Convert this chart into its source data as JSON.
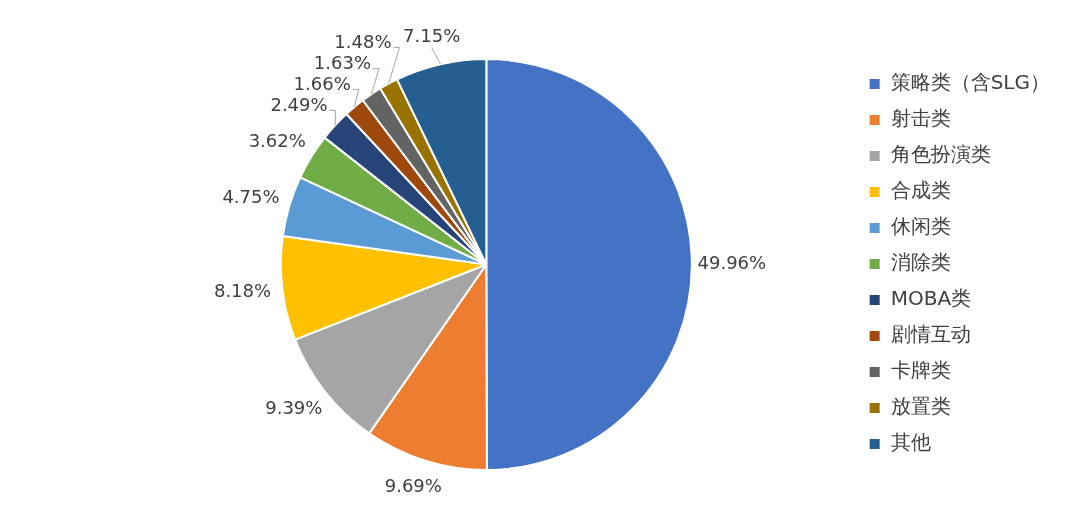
{
  "chart_data": {
    "type": "pie",
    "categories": [
      "策略类（含SLG）",
      "射击类",
      "角色扮演类",
      "合成类",
      "休闲类",
      "消除类",
      "MOBA类",
      "剧情互动",
      "卡牌类",
      "放置类",
      "其他"
    ],
    "values": [
      49.96,
      9.69,
      9.39,
      8.18,
      4.75,
      3.62,
      2.49,
      1.66,
      1.63,
      1.48,
      7.15
    ],
    "colors": [
      "#4472c4",
      "#ed7d31",
      "#a5a5a5",
      "#ffc000",
      "#5b9bd5",
      "#70ad47",
      "#264478",
      "#9e480e",
      "#636363",
      "#997300",
      "#255e91"
    ],
    "value_labels": [
      "49.96%",
      "9.69%",
      "9.39%",
      "8.18%",
      "4.75%",
      "3.62%",
      "2.49%",
      "1.66%",
      "1.63%",
      "1.48%",
      "7.15%"
    ],
    "legend": "right"
  }
}
